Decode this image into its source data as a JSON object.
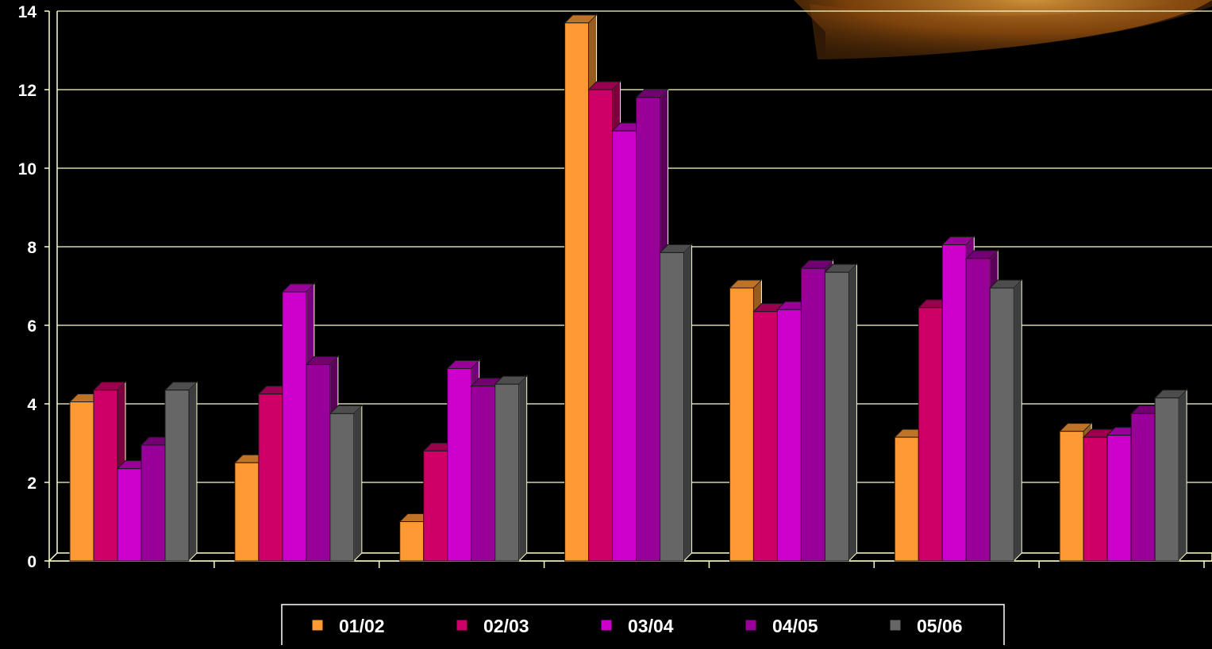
{
  "chart_data": {
    "type": "bar",
    "categories": [
      "",
      "",
      "",
      "",
      "",
      "",
      ""
    ],
    "series": [
      {
        "name": "01/02",
        "color": "#FF9933",
        "values": [
          4.05,
          2.5,
          1.0,
          13.7,
          6.95,
          3.15,
          3.3
        ]
      },
      {
        "name": "02/03",
        "color": "#CC0066",
        "values": [
          4.35,
          4.25,
          2.8,
          12.0,
          6.35,
          6.45,
          3.15
        ]
      },
      {
        "name": "03/04",
        "color": "#CC00CC",
        "values": [
          2.35,
          6.85,
          4.9,
          10.95,
          6.4,
          8.05,
          3.2
        ]
      },
      {
        "name": "04/05",
        "color": "#990099",
        "values": [
          2.95,
          5.0,
          4.45,
          11.8,
          7.45,
          7.7,
          3.75
        ]
      },
      {
        "name": "05/06",
        "color": "#666666",
        "values": [
          4.35,
          3.75,
          4.5,
          7.85,
          7.35,
          6.95,
          4.15
        ]
      }
    ],
    "y_ticks": [
      "0",
      "2",
      "4",
      "6",
      "8",
      "10",
      "12",
      "14"
    ],
    "ylim": [
      0,
      14
    ],
    "grid": true,
    "legend_position": "bottom",
    "title": "",
    "xlabel": "",
    "ylabel": "",
    "colors": {
      "background": "#000000",
      "axis": "#FFFFCC",
      "text": "#FFFFFF"
    }
  }
}
